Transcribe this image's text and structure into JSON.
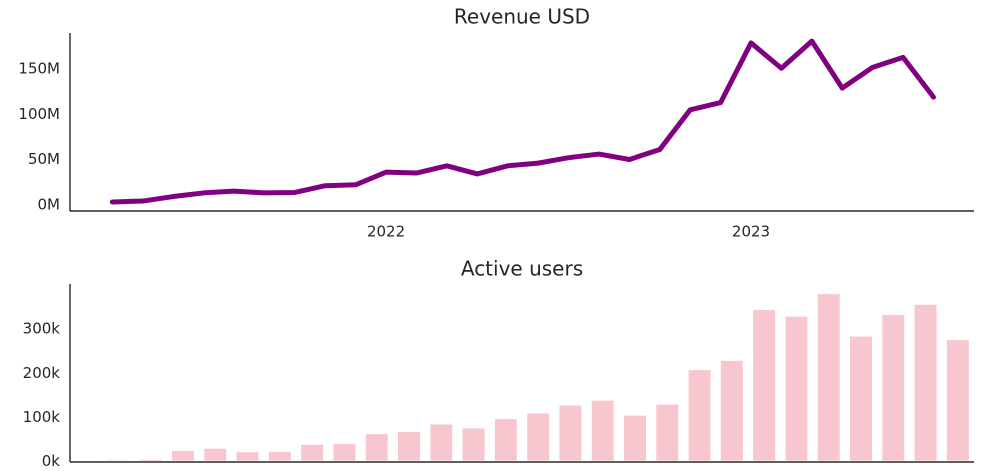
{
  "chart_data": [
    {
      "type": "line",
      "title": "Revenue USD",
      "x": [
        2021.25,
        2021.3333,
        2021.4167,
        2021.5,
        2021.5833,
        2021.6667,
        2021.75,
        2021.8333,
        2021.9167,
        2022,
        2022.0833,
        2022.1667,
        2022.25,
        2022.3333,
        2022.4167,
        2022.5,
        2022.5833,
        2022.6667,
        2022.75,
        2022.8333,
        2022.9167,
        2023,
        2023.0833,
        2023.1667,
        2023.25,
        2023.3333,
        2023.4167,
        2023.5
      ],
      "series": [
        {
          "name": "Revenue USD",
          "color": "#800080",
          "values": [
            2000000,
            3000000,
            8000000,
            12000000,
            14000000,
            12000000,
            12500000,
            20000000,
            21000000,
            35000000,
            34000000,
            42000000,
            33000000,
            42000000,
            45000000,
            51000000,
            55000000,
            49000000,
            60000000,
            104000000,
            112000000,
            178000000,
            150000000,
            180000000,
            128000000,
            151000000,
            162000000,
            118000000
          ]
        }
      ],
      "xlim": [
        2021.134,
        2023.611
      ],
      "xticks": [
        2022,
        2023
      ],
      "ylim": [
        -8000000,
        189000000
      ],
      "yticks": [
        {
          "value": 0,
          "label": "0M"
        },
        {
          "value": 50000000,
          "label": "50M"
        },
        {
          "value": 100000000,
          "label": "100M"
        },
        {
          "value": 150000000,
          "label": "150M"
        }
      ],
      "grid": false
    },
    {
      "type": "bar",
      "title": "Active users",
      "categories": [
        null,
        null,
        null,
        null,
        null,
        null,
        null,
        null,
        null,
        null,
        null,
        null,
        null,
        null,
        null,
        null,
        null,
        null,
        null,
        null,
        null,
        null,
        null,
        null,
        null,
        null,
        null,
        null
      ],
      "series": [
        {
          "name": "Active users",
          "color": "#f7c6cf",
          "values": [
            300,
            800,
            2000,
            22000,
            27000,
            19000,
            20000,
            36000,
            38000,
            60000,
            65000,
            82000,
            73000,
            94000,
            107000,
            125000,
            136000,
            102000,
            127000,
            205000,
            226000,
            341000,
            326000,
            377000,
            281000,
            330000,
            353000,
            273000
          ]
        }
      ],
      "ylim": [
        -3000,
        400000
      ],
      "yticks": [
        {
          "value": 0,
          "label": "0k"
        },
        {
          "value": 100000,
          "label": "100k"
        },
        {
          "value": 200000,
          "label": "200k"
        },
        {
          "value": 300000,
          "label": "300k"
        }
      ],
      "grid": false
    }
  ]
}
